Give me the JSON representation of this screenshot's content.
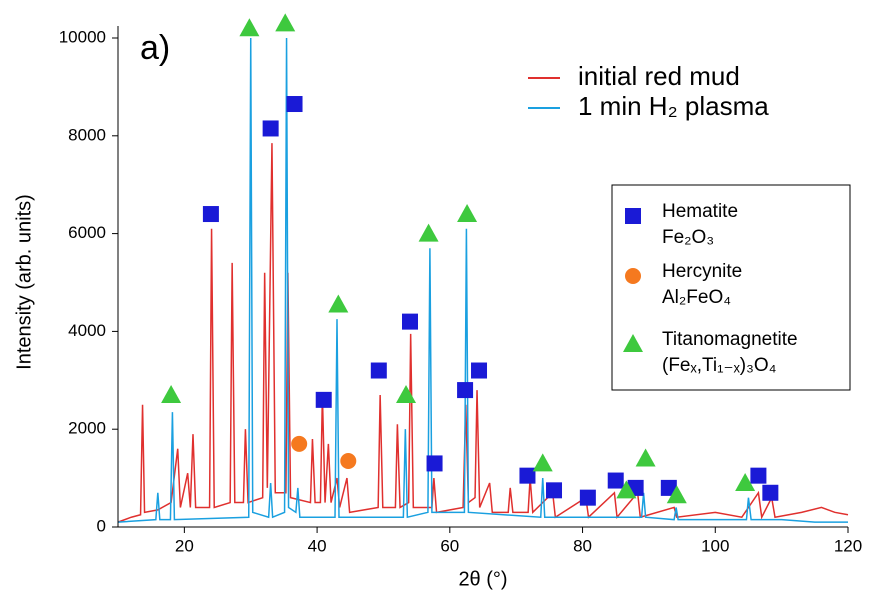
{
  "chart_data": {
    "type": "line",
    "panel_label": "a)",
    "xlabel": "2θ (°)",
    "ylabel": "Intensity (arb. units)",
    "xlim": [
      10,
      120
    ],
    "xticks": [
      20,
      40,
      60,
      80,
      100,
      120
    ],
    "ylim": [
      0,
      10000
    ],
    "yticks": [
      0,
      2000,
      4000,
      6000,
      8000,
      10000
    ],
    "series": [
      {
        "name": "initial red mud",
        "color": "#e0302e",
        "x": [
          10,
          12,
          13.4,
          13.7,
          14,
          16,
          18,
          19.0,
          19.4,
          20.5,
          20.9,
          21.3,
          21.7,
          23.8,
          24.1,
          24.5,
          26.9,
          27.2,
          27.6,
          28.9,
          29.2,
          29.6,
          31.8,
          32.1,
          32.5,
          33.2,
          33.7,
          35.3,
          35.6,
          36,
          39.0,
          39.3,
          39.7,
          40.5,
          40.8,
          41.2,
          41.7,
          42.1,
          43.0,
          43.4,
          44.5,
          44.9,
          49.2,
          49.5,
          49.9,
          51.8,
          52.1,
          52.5,
          53.8,
          54.1,
          54.5,
          57.3,
          57.6,
          58,
          62.0,
          62.4,
          62.8,
          63.8,
          64.1,
          64.5,
          66,
          66.4,
          68.8,
          69.1,
          69.5,
          71.8,
          72.1,
          72.5,
          75.5,
          75.9,
          80.5,
          80.9,
          84.8,
          85.2,
          88.3,
          88.7,
          93.8,
          94.2,
          100,
          104,
          106.5,
          107,
          108.5,
          109,
          113,
          116,
          118,
          120
        ],
        "values": [
          100,
          200,
          250,
          2500,
          300,
          350,
          500,
          1600,
          400,
          1100,
          400,
          1900,
          400,
          400,
          6100,
          400,
          500,
          5400,
          500,
          500,
          2000,
          500,
          600,
          5200,
          800,
          7850,
          700,
          700,
          5200,
          600,
          500,
          1800,
          500,
          500,
          2700,
          500,
          1700,
          500,
          1000,
          400,
          1000,
          300,
          400,
          2700,
          400,
          400,
          2100,
          400,
          500,
          3950,
          400,
          400,
          1000,
          300,
          400,
          2500,
          500,
          600,
          2800,
          400,
          900,
          300,
          300,
          800,
          300,
          300,
          1000,
          300,
          700,
          200,
          600,
          200,
          700,
          200,
          700,
          200,
          400,
          200,
          300,
          200,
          700,
          200,
          600,
          200,
          300,
          400,
          300,
          250
        ]
      },
      {
        "name": "1 min H₂ plasma",
        "color": "#1aa0e0",
        "x": [
          10,
          15.7,
          16,
          16.3,
          17.9,
          18.2,
          18.5,
          29.7,
          30,
          30.3,
          32.7,
          33,
          33.3,
          35.1,
          35.4,
          35.7,
          36.8,
          37.1,
          37.4,
          42.7,
          43,
          43.3,
          53,
          53.3,
          53.6,
          56.7,
          57,
          57.3,
          62.2,
          62.5,
          62.8,
          73.7,
          74,
          74.3,
          88.9,
          89.2,
          89.5,
          93.8,
          94.1,
          94.4,
          104.7,
          105,
          105.4,
          110,
          115,
          120
        ],
        "values": [
          100,
          150,
          700,
          150,
          150,
          2350,
          150,
          200,
          10000,
          300,
          200,
          900,
          200,
          300,
          10000,
          400,
          300,
          800,
          200,
          200,
          4250,
          200,
          200,
          2000,
          200,
          300,
          5700,
          300,
          300,
          6100,
          300,
          200,
          1000,
          200,
          200,
          700,
          200,
          150,
          400,
          150,
          150,
          600,
          150,
          150,
          100,
          100
        ]
      }
    ],
    "phases": [
      {
        "name": "Hematite",
        "formula": "Fe₂O₃",
        "color": "#1a1ad6",
        "shape": "square",
        "x": [
          24,
          33,
          36.6,
          41,
          49.3,
          54,
          57.7,
          62.3,
          64.4,
          71.7,
          75.7,
          80.8,
          85,
          88,
          93,
          106.5,
          108.3
        ],
        "values": [
          6400,
          8150,
          8650,
          2600,
          3200,
          4200,
          1300,
          2800,
          3200,
          1050,
          750,
          600,
          950,
          800,
          800,
          1050,
          700
        ]
      },
      {
        "name": "Hercynite",
        "formula": "Al₂FeO₄",
        "color": "#f5791f",
        "shape": "circle",
        "x": [
          37.3,
          44.7
        ],
        "values": [
          1700,
          1350
        ]
      },
      {
        "name": "Titanomagnetite",
        "formula": "(Feₓ,Ti₁₋ₓ)₃O₄",
        "color": "#3ec93e",
        "shape": "triangle",
        "x": [
          18,
          29.8,
          35.2,
          43.2,
          53.4,
          56.8,
          62.6,
          74,
          86.6,
          89.5,
          94.2,
          104.5
        ],
        "values": [
          2700,
          10200,
          10300,
          4550,
          2700,
          6000,
          6400,
          1300,
          750,
          1400,
          650,
          900
        ]
      }
    ]
  }
}
